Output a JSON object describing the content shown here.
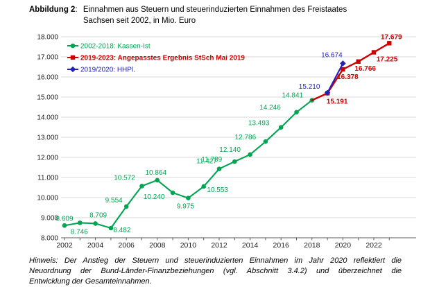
{
  "title": {
    "label": "Abbildung 2",
    "colon": ": ",
    "lines": [
      "Einnahmen aus Steuern und steuerinduzierten Einnahmen des Freistaates",
      "Sachsen seit 2002, in Mio. Euro"
    ]
  },
  "footnote": {
    "lines": [
      "Hinweis: Der Anstieg der Steuern und steuerinduzierten Einnahmen im Jahr 2020 reflektiert die",
      "Neuordnung der Bund-Länder-Finanzbeziehungen (vgl. Abschnitt 3.4.2) und überzeichnet die",
      "Entwicklung der Gesamteinnahmen."
    ]
  },
  "chart_data": {
    "type": "line",
    "title": "Einnahmen aus Steuern und steuerinduzierten Einnahmen des Freistaates Sachsen seit 2002, in Mio. Euro",
    "xlabel": "",
    "ylabel": "",
    "grid": "horizontal",
    "legend_position": "top-left",
    "y_axis": {
      "min": 8000,
      "max": 18000,
      "step": 1000,
      "tick_labels": [
        "18.000",
        "17.000",
        "16.000",
        "15.000",
        "14.000",
        "13.000",
        "12.000",
        "11.000",
        "10.000",
        "9.000",
        "8.000"
      ]
    },
    "x_axis": {
      "min": 2002,
      "max": 2023,
      "label_step": 2,
      "tick_labels": [
        "2002",
        "2004",
        "2006",
        "2008",
        "2010",
        "2012",
        "2014",
        "2016",
        "2018",
        "2020",
        "2022"
      ]
    },
    "colors": {
      "green": "#00A551",
      "red": "#CC0000",
      "blue": "#2222BB",
      "grid": "#D9D9D9",
      "axis": "#595959",
      "text": "#1a1a1a"
    },
    "series": [
      {
        "name": "2002-2018: Kassen-Ist",
        "color": "#00A551",
        "marker": "circle",
        "bold": false,
        "points": [
          {
            "year": 2002,
            "value": 8609,
            "label": "8.609",
            "dx": 0,
            "dy": -7
          },
          {
            "year": 2003,
            "value": 8746,
            "label": "8.746",
            "dx": -1,
            "dy": 16
          },
          {
            "year": 2004,
            "value": 8709,
            "label": "8.709",
            "dx": 4,
            "dy": -9
          },
          {
            "year": 2005,
            "value": 8482,
            "label": "8.482",
            "dx": 16,
            "dy": 6
          },
          {
            "year": 2006,
            "value": 9554,
            "label": "9.554",
            "dx": -18,
            "dy": -6
          },
          {
            "year": 2007,
            "value": 10572,
            "label": "10.572",
            "dx": -25,
            "dy": -9
          },
          {
            "year": 2008,
            "value": 10864,
            "label": "10.864",
            "dx": -2,
            "dy": -8
          },
          {
            "year": 2009,
            "value": 10240,
            "label": "10.240",
            "dx": -27,
            "dy": 9
          },
          {
            "year": 2010,
            "value": 9975,
            "label": "9.975",
            "dx": -4,
            "dy": 15
          },
          {
            "year": 2011,
            "value": 10553,
            "label": "10.553",
            "dx": 20,
            "dy": 8
          },
          {
            "year": 2012,
            "value": 11427,
            "label": "11.427",
            "dx": -18,
            "dy": -8
          },
          {
            "year": 2013,
            "value": 11789,
            "label": "11.789",
            "dx": -33,
            "dy": 0
          },
          {
            "year": 2014,
            "value": 12140,
            "label": "12.140",
            "dx": -29,
            "dy": -4
          },
          {
            "year": 2015,
            "value": 12786,
            "label": "12.786",
            "dx": -29,
            "dy": -3
          },
          {
            "year": 2016,
            "value": 13493,
            "label": "13.493",
            "dx": -32,
            "dy": -3
          },
          {
            "year": 2017,
            "value": 14246,
            "label": "14.246",
            "dx": -38,
            "dy": -4
          },
          {
            "year": 2018,
            "value": 14841,
            "label": "14.841",
            "dx": -28,
            "dy": -4
          }
        ]
      },
      {
        "name": "2019-2023: Angepasstes Ergebnis StSch Mai 2019",
        "color": "#CC0000",
        "marker": "square",
        "bold": true,
        "connect_from": {
          "year": 2018,
          "value": 14841
        },
        "points": [
          {
            "year": 2019,
            "value": 15191,
            "label": "15.191",
            "dx": 14,
            "dy": 15
          },
          {
            "year": 2020,
            "value": 16378,
            "label": "16.378",
            "dx": 7,
            "dy": 14
          },
          {
            "year": 2021,
            "value": 16766,
            "label": "16.766",
            "dx": 10,
            "dy": 13
          },
          {
            "year": 2022,
            "value": 17225,
            "label": "17.225",
            "dx": 19,
            "dy": 13
          },
          {
            "year": 2023,
            "value": 17679,
            "label": "17.679",
            "dx": 3,
            "dy": -6
          }
        ]
      },
      {
        "name": "2019/2020: HHPl.",
        "color": "#2222BB",
        "marker": "diamond",
        "bold": false,
        "points": [
          {
            "year": 2019,
            "value": 15210,
            "label": "15.210",
            "dx": -26,
            "dy": -6
          },
          {
            "year": 2020,
            "value": 16674,
            "label": "16.674",
            "dx": -16,
            "dy": -9
          }
        ]
      }
    ]
  }
}
